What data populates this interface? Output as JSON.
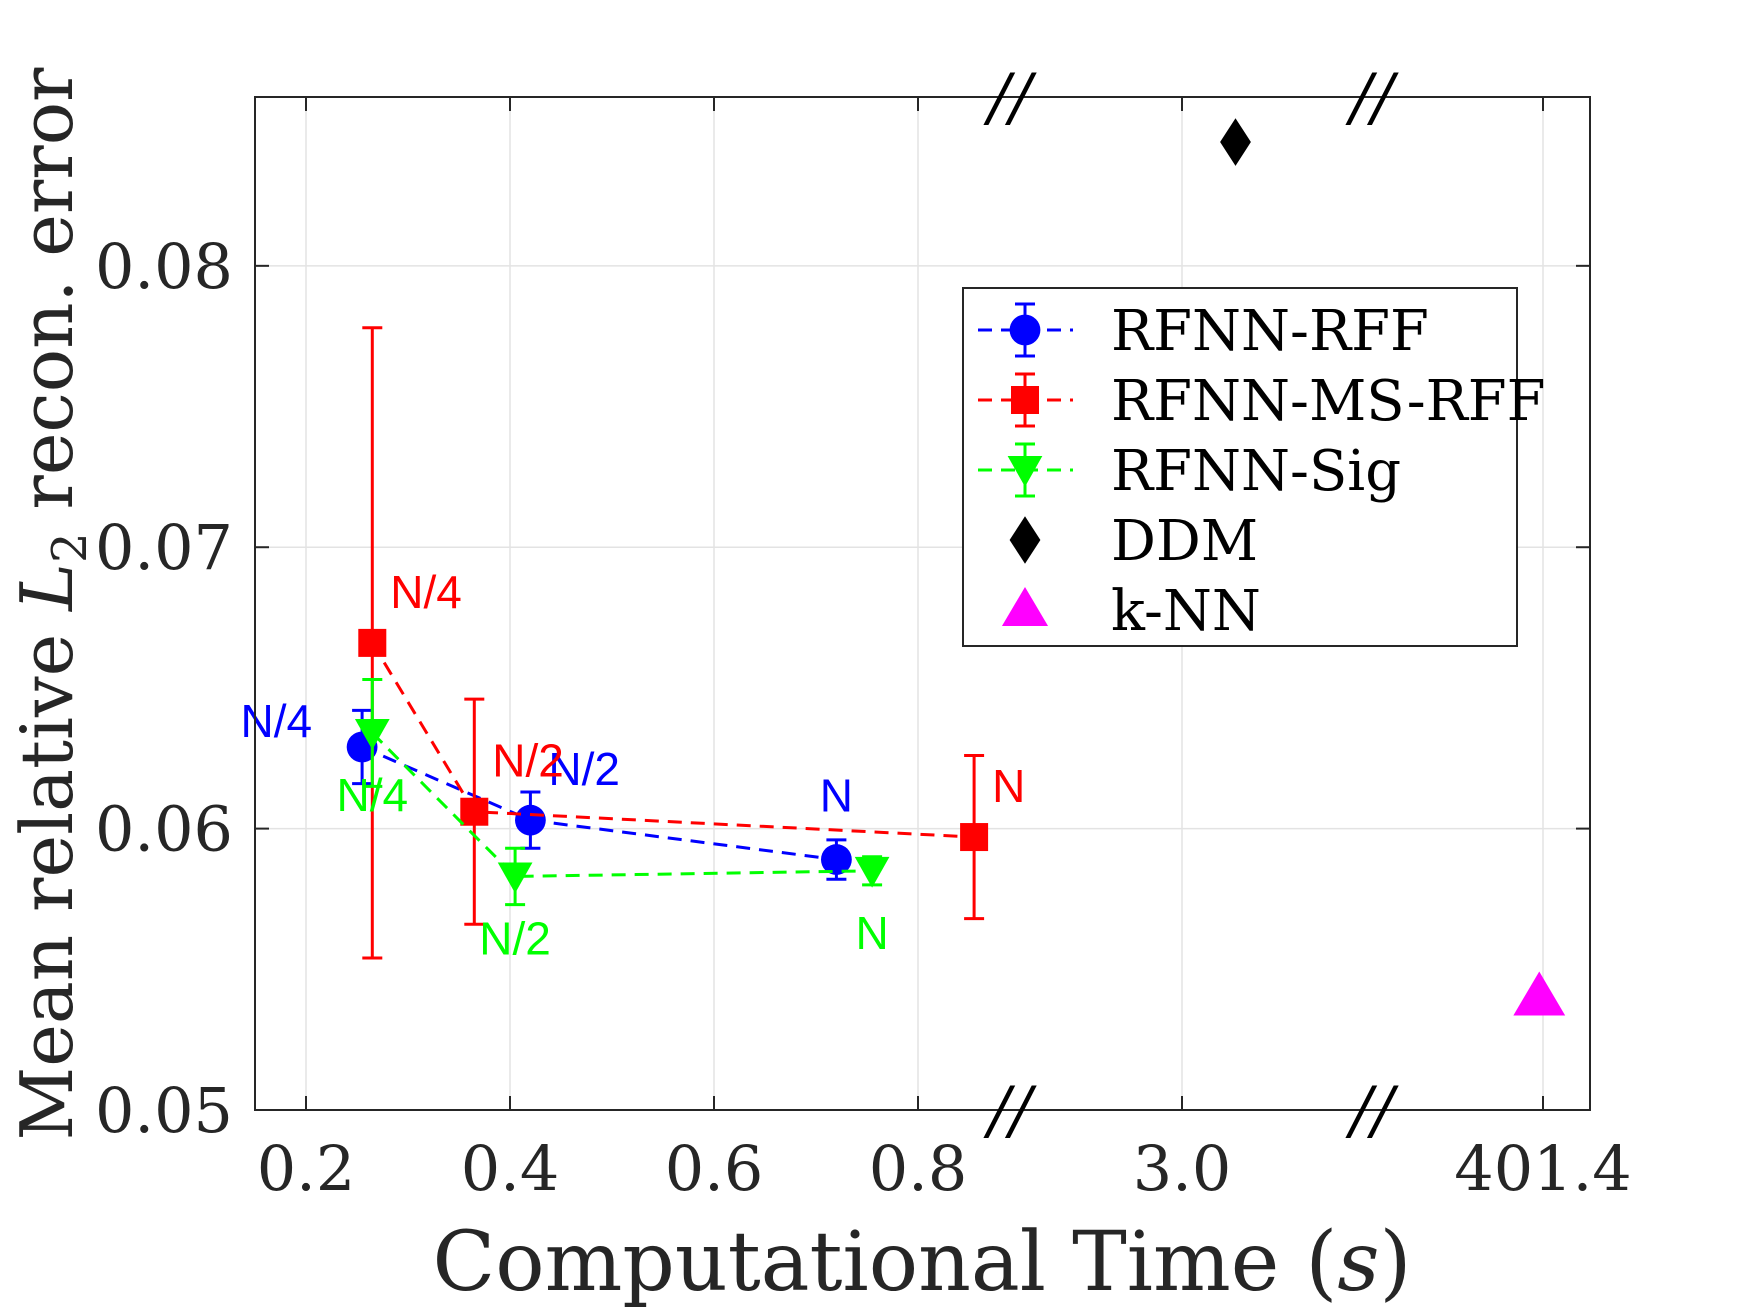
{
  "chart_data": {
    "type": "scatter",
    "title": "",
    "xlabel_prefix": "Computational Time (",
    "xlabel_var": "s",
    "xlabel_suffix": ")",
    "ylabel_prefix": "Mean relative ",
    "ylabel_var": "L",
    "ylabel_sub": "2",
    "ylabel_suffix": " recon. error",
    "ylim": [
      0.05,
      0.086
    ],
    "yticks": [
      0.05,
      0.06,
      0.07,
      0.08
    ],
    "ytick_labels": [
      "0.05",
      "0.06",
      "0.07",
      "0.08"
    ],
    "xlim_first_segment": [
      0.15,
      0.9
    ],
    "xticks": [
      {
        "segment": 0,
        "value": 0.2,
        "label": "0.2"
      },
      {
        "segment": 0,
        "value": 0.4,
        "label": "0.4"
      },
      {
        "segment": 0,
        "value": 0.6,
        "label": "0.6"
      },
      {
        "segment": 0,
        "value": 0.8,
        "label": "0.8"
      },
      {
        "segment": 1,
        "value": 3.0,
        "label": "3.0"
      },
      {
        "segment": 2,
        "value": 401.4,
        "label": "401.4"
      }
    ],
    "axis_break_symbol": "//",
    "grid": true,
    "legend_position": "top-right",
    "series": [
      {
        "name": "RFNN-RFF",
        "color": "#0000ff",
        "marker": "circle",
        "line": "dashed",
        "points": [
          {
            "x": 0.255,
            "y": 0.0629,
            "err": 0.0013,
            "label": "N/4",
            "label_pos": "left"
          },
          {
            "x": 0.42,
            "y": 0.0603,
            "err": 0.001,
            "label": "N/2",
            "label_pos": "upper-right"
          },
          {
            "x": 0.72,
            "y": 0.0589,
            "err": 0.0007,
            "label": "N",
            "label_pos": "above"
          }
        ]
      },
      {
        "name": "RFNN-MS-RFF",
        "color": "#ff0000",
        "marker": "square",
        "line": "dashed",
        "points": [
          {
            "x": 0.265,
            "y": 0.0666,
            "err": 0.0112,
            "label": "N/4",
            "label_pos": "upper-right"
          },
          {
            "x": 0.365,
            "y": 0.0606,
            "err": 0.004,
            "label": "N/2",
            "label_pos": "upper-right"
          },
          {
            "x": 0.855,
            "y": 0.0597,
            "err": 0.0029,
            "label": "N",
            "label_pos": "upper-right"
          }
        ]
      },
      {
        "name": "RFNN-Sig",
        "color": "#00ff00",
        "marker": "triangle-down",
        "line": "dashed",
        "points": [
          {
            "x": 0.265,
            "y": 0.0634,
            "err": 0.0019,
            "label": "N/4",
            "label_pos": "below"
          },
          {
            "x": 0.405,
            "y": 0.0583,
            "err": 0.001,
            "label": "N/2",
            "label_pos": "below"
          },
          {
            "x": 0.755,
            "y": 0.0585,
            "err": 0.0005,
            "label": "N",
            "label_pos": "below"
          }
        ]
      },
      {
        "name": "DDM",
        "color": "#000000",
        "marker": "diamond",
        "line": "none",
        "points": [
          {
            "segment": 1,
            "x": 3.5,
            "y": 0.0844
          }
        ]
      },
      {
        "name": "k-NN",
        "color": "#ff00ff",
        "marker": "triangle-up",
        "line": "none",
        "points": [
          {
            "segment": 2,
            "x": 398,
            "y": 0.054
          }
        ]
      }
    ]
  }
}
